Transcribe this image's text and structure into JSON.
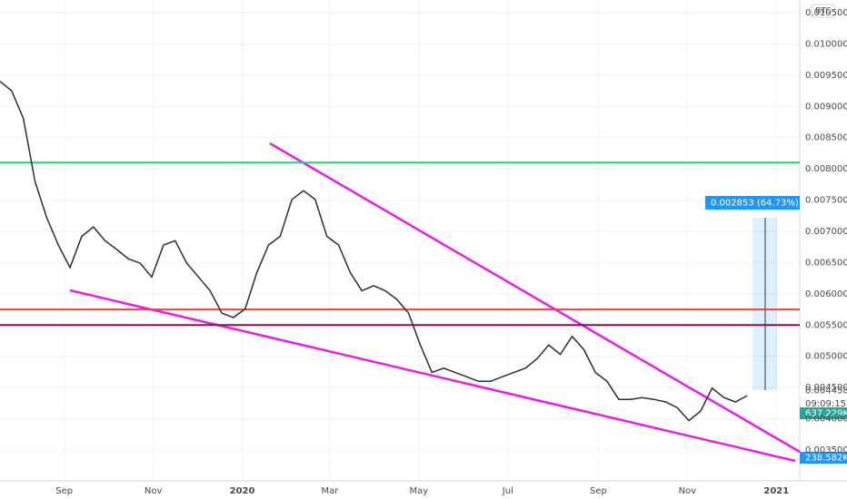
{
  "chart_data": {
    "type": "line",
    "currency": "BTC",
    "color": "#2a2e39",
    "x": [
      0,
      8,
      16,
      24,
      32,
      40,
      48,
      56,
      64,
      72,
      80,
      88,
      96,
      104,
      112,
      120,
      128,
      136,
      144,
      152,
      160,
      168,
      176,
      184,
      192,
      200,
      208,
      216,
      224,
      232,
      240,
      248,
      256,
      264,
      272,
      280,
      288,
      296,
      304,
      312,
      320,
      328,
      336,
      344,
      352,
      360,
      368,
      376,
      384,
      392,
      400,
      408,
      416,
      424,
      432,
      440,
      448,
      456,
      464,
      472,
      480,
      488,
      496,
      504,
      512
    ],
    "values": [
      0.0094,
      0.00925,
      0.00881,
      0.0078,
      0.00722,
      0.00678,
      0.00642,
      0.00692,
      0.00707,
      0.00685,
      0.00671,
      0.00656,
      0.00649,
      0.00627,
      0.00678,
      0.00685,
      0.00649,
      0.00627,
      0.00605,
      0.00569,
      0.00562,
      0.00576,
      0.00634,
      0.00678,
      0.00692,
      0.00751,
      0.00765,
      0.00751,
      0.00692,
      0.00678,
      0.00634,
      0.00605,
      0.00613,
      0.00605,
      0.00591,
      0.00569,
      0.00518,
      0.00474,
      0.00481,
      0.00474,
      0.00467,
      0.0046,
      0.0046,
      0.00467,
      0.00474,
      0.00481,
      0.00496,
      0.00518,
      0.00503,
      0.00532,
      0.00511,
      0.00474,
      0.0046,
      0.00431,
      0.00431,
      0.00434,
      0.00431,
      0.00427,
      0.00418,
      0.00397,
      0.00412,
      0.00449,
      0.00434,
      0.00427,
      0.00437
    ],
    "xlim": [
      0,
      548
    ],
    "ylim": [
      0.0035,
      0.0105
    ],
    "xticks": [
      {
        "value": 44,
        "label": "Sep"
      },
      {
        "value": 105,
        "label": "Nov"
      },
      {
        "value": 166,
        "label": "2020"
      },
      {
        "value": 226,
        "label": "Mar"
      },
      {
        "value": 287,
        "label": "May"
      },
      {
        "value": 348,
        "label": "Jul"
      },
      {
        "value": 410,
        "label": "Sep"
      },
      {
        "value": 471,
        "label": "Nov"
      },
      {
        "value": 532,
        "label": "2021"
      }
    ],
    "yticks": [
      {
        "value": 0.0035,
        "label": "0.003500"
      },
      {
        "value": 0.004,
        "label": "0.004000"
      },
      {
        "value": 0.0045,
        "label": "0.004500"
      },
      {
        "value": 0.005,
        "label": "0.005000"
      },
      {
        "value": 0.0055,
        "label": "0.005500"
      },
      {
        "value": 0.006,
        "label": "0.006000"
      },
      {
        "value": 0.0065,
        "label": "0.006500"
      },
      {
        "value": 0.007,
        "label": "0.007000"
      },
      {
        "value": 0.0075,
        "label": "0.007500"
      },
      {
        "value": 0.008,
        "label": "0.008000"
      },
      {
        "value": 0.0085,
        "label": "0.008500"
      },
      {
        "value": 0.009,
        "label": "0.009000"
      },
      {
        "value": 0.0095,
        "label": "0.009500"
      },
      {
        "value": 0.01,
        "label": "0.010000"
      },
      {
        "value": 0.0105,
        "label": "0.010500"
      }
    ],
    "levels": [
      {
        "value": 0.0081,
        "color": "#2ecc71"
      },
      {
        "value": 0.00575,
        "color": "#f0413a"
      },
      {
        "value": 0.0055,
        "color": "#880e4f"
      }
    ],
    "measure_label": "0.002853 (64.73%)",
    "last_price": "0.004458",
    "countdown": "09:09:15",
    "volume_label": "637.229K",
    "volume_ma_label": "238.582K"
  }
}
